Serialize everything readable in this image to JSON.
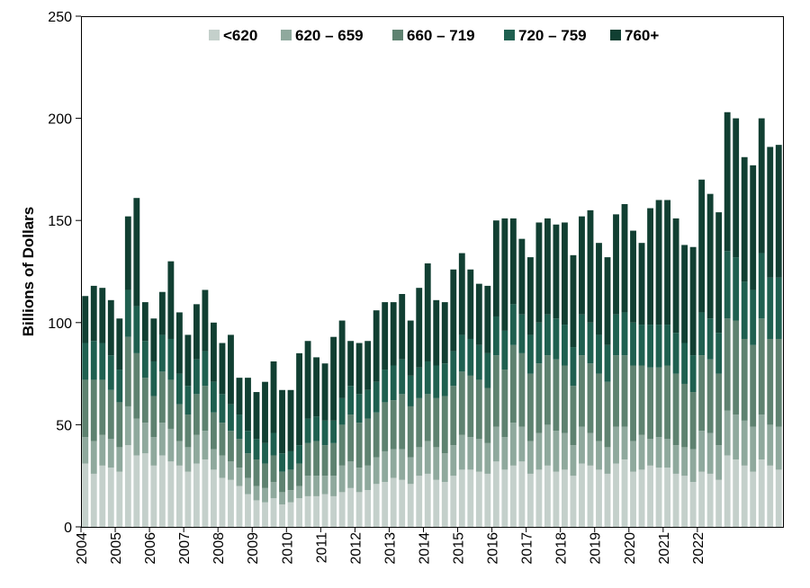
{
  "chart_data": {
    "type": "bar",
    "stacked": true,
    "ylabel": "Billions of Dollars",
    "ylim": [
      0,
      250
    ],
    "yticks": [
      0,
      50,
      100,
      150,
      200,
      250
    ],
    "x_tick_labels": [
      "2004",
      "2005",
      "2006",
      "2007",
      "2008",
      "2009",
      "2010",
      "2011",
      "2012",
      "2013",
      "2014",
      "2015",
      "2016",
      "2017",
      "2018",
      "2019",
      "2020",
      "2021",
      "2022"
    ],
    "legend_position": "top-center",
    "grid": false,
    "series": [
      {
        "name": "<620",
        "color": "#c4d0cb",
        "values": [
          31,
          26,
          30,
          29,
          27,
          40,
          35,
          36,
          30,
          35,
          32,
          30,
          27,
          31,
          33,
          28,
          24,
          23,
          20,
          16,
          13,
          12,
          14,
          11,
          12,
          14,
          15,
          15,
          16,
          15,
          17,
          19,
          17,
          18,
          21,
          22,
          24,
          23,
          21,
          25,
          26,
          23,
          22,
          25,
          28,
          28,
          27,
          26,
          32,
          28,
          30,
          32,
          26,
          28,
          30,
          27,
          28,
          25,
          31,
          30,
          28,
          26,
          31,
          33,
          27,
          28,
          30,
          29,
          29,
          26,
          25,
          22,
          27,
          26,
          23,
          35,
          33,
          30,
          27,
          33,
          30,
          28
        ]
      },
      {
        "name": "620 – 659",
        "color": "#8fa99d",
        "values": [
          13,
          16,
          15,
          14,
          12,
          19,
          18,
          15,
          14,
          16,
          16,
          12,
          12,
          14,
          14,
          10,
          11,
          9,
          9,
          8,
          7,
          7,
          8,
          6,
          6,
          6,
          10,
          10,
          9,
          10,
          13,
          13,
          12,
          12,
          13,
          15,
          14,
          15,
          13,
          14,
          16,
          16,
          14,
          15,
          17,
          16,
          16,
          15,
          17,
          16,
          21,
          17,
          16,
          18,
          20,
          20,
          18,
          15,
          18,
          16,
          14,
          13,
          18,
          16,
          15,
          17,
          13,
          15,
          14,
          14,
          14,
          16,
          20,
          20,
          17,
          22,
          22,
          22,
          22,
          22,
          20,
          21
        ]
      },
      {
        "name": "660 – 719",
        "color": "#5e8270",
        "values": [
          28,
          30,
          27,
          24,
          22,
          34,
          32,
          22,
          20,
          25,
          24,
          18,
          16,
          20,
          22,
          18,
          16,
          15,
          14,
          12,
          13,
          12,
          13,
          10,
          10,
          11,
          16,
          17,
          15,
          16,
          20,
          23,
          22,
          23,
          22,
          24,
          24,
          27,
          25,
          24,
          23,
          24,
          28,
          29,
          31,
          30,
          29,
          27,
          35,
          33,
          38,
          36,
          33,
          34,
          34,
          35,
          33,
          29,
          35,
          34,
          33,
          32,
          35,
          35,
          37,
          34,
          35,
          34,
          36,
          35,
          31,
          28,
          37,
          36,
          35,
          45,
          46,
          40,
          40,
          47,
          42,
          43
        ]
      },
      {
        "name": "720 – 759",
        "color": "#1f6050",
        "values": [
          18,
          19,
          18,
          17,
          16,
          23,
          23,
          18,
          17,
          18,
          20,
          15,
          14,
          17,
          17,
          15,
          14,
          13,
          12,
          11,
          10,
          10,
          11,
          9,
          9,
          9,
          12,
          12,
          12,
          11,
          13,
          14,
          14,
          14,
          15,
          16,
          17,
          17,
          15,
          15,
          16,
          16,
          16,
          17,
          18,
          18,
          17,
          17,
          19,
          19,
          20,
          19,
          19,
          20,
          20,
          20,
          20,
          19,
          20,
          20,
          19,
          18,
          20,
          21,
          21,
          20,
          21,
          21,
          20,
          20,
          20,
          18,
          21,
          20,
          20,
          33,
          31,
          28,
          27,
          32,
          30,
          30
        ]
      },
      {
        "name": "760+",
        "color": "#113f32",
        "values": [
          23,
          27,
          27,
          27,
          25,
          36,
          53,
          19,
          21,
          21,
          38,
          30,
          25,
          27,
          30,
          29,
          25,
          34,
          18,
          26,
          23,
          30,
          35,
          31,
          30,
          45,
          38,
          29,
          28,
          41,
          38,
          22,
          25,
          24,
          35,
          33,
          31,
          32,
          27,
          39,
          48,
          32,
          30,
          40,
          40,
          34,
          30,
          33,
          47,
          55,
          42,
          37,
          38,
          49,
          47,
          46,
          50,
          45,
          48,
          55,
          45,
          43,
          49,
          53,
          45,
          40,
          57,
          61,
          61,
          56,
          48,
          53,
          65,
          61,
          59,
          68,
          68,
          61,
          61,
          66,
          64,
          65
        ]
      }
    ]
  }
}
